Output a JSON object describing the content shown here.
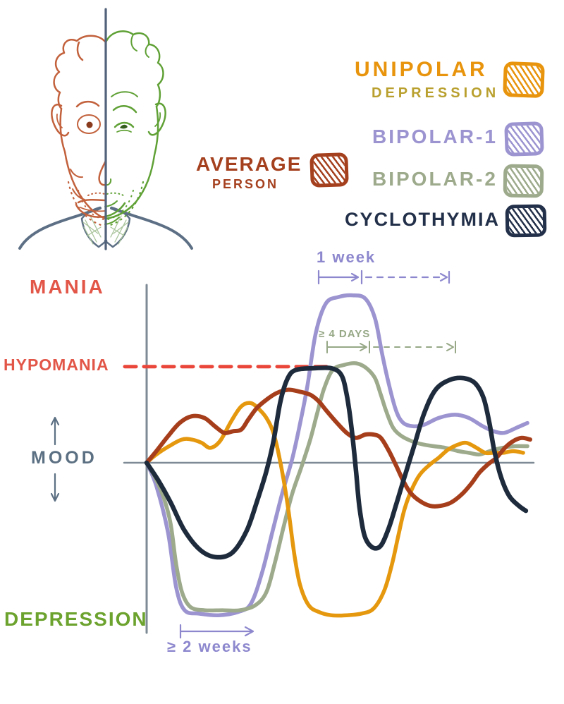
{
  "legend": {
    "average_person": {
      "line1": "AVERAGE",
      "line2": "PERSON",
      "color": "#a5401e"
    },
    "items": [
      {
        "id": "unipolar",
        "label": "UNIPOLAR",
        "sublabel": "DEPRESSION",
        "color": "#e8940c",
        "sublabel_color": "#b9a02e"
      },
      {
        "id": "bipolar-1",
        "label": "BIPOLAR-1",
        "color": "#9b94d1"
      },
      {
        "id": "bipolar-2",
        "label": "BIPOLAR-2",
        "color": "#9daa8b"
      },
      {
        "id": "cyclothymia",
        "label": "CYCLOTHYMIA",
        "color": "#233049"
      }
    ]
  },
  "palette": {
    "axis": "#7e8a95",
    "mania_hypomania_label": "#e25648",
    "hypomania_dash": "#ea463a",
    "mood_label": "#5c7083",
    "depression_label": "#6ca22e",
    "face_left_happy": "#c2613c",
    "face_right_sad": "#60a136",
    "sweater": "#5c6f84"
  },
  "chart_data": {
    "type": "line",
    "y_axis": {
      "label": "MOOD",
      "top_label": "MANIA",
      "threshold_label": "HYPOMANIA",
      "bottom_label": "DEPRESSION",
      "range": [
        -1,
        1.1
      ]
    },
    "x_axis": {
      "range": [
        0,
        10
      ],
      "visible_ticks": []
    },
    "grid": false,
    "legend_position": "top-right",
    "threshold_line": {
      "label": "HYPOMANIA",
      "mood": 0.58,
      "color": "#ea463a",
      "style": "dashed"
    },
    "annotations": [
      {
        "text": "1 week",
        "color": "#8d88ce",
        "series": "BIPOLAR-1",
        "solid_span_t": [
          4.4,
          5.5
        ],
        "dashed_span_t": [
          5.6,
          7.8
        ]
      },
      {
        "text": "≥ 4 DAYS",
        "color": "#96a886",
        "series": "BIPOLAR-2",
        "solid_span_t": [
          4.7,
          5.7
        ],
        "dashed_span_t": [
          5.9,
          8.0
        ]
      },
      {
        "text": "≥ 2 weeks",
        "color": "#8d88ce",
        "series": "BIPOLAR-1",
        "solid_span_t": [
          0.9,
          2.8
        ]
      }
    ],
    "units": {
      "t": "time (arbitrary, no ticks shown)",
      "mood": "-1 severe depression … +1 mania; hypomania threshold at 0.58"
    },
    "series": [
      {
        "name": "BIPOLAR-1",
        "color": "#9b94d1",
        "points": [
          [
            0,
            0
          ],
          [
            0.25,
            -0.14
          ],
          [
            0.55,
            -0.42
          ],
          [
            0.76,
            -0.75
          ],
          [
            0.98,
            -0.89
          ],
          [
            1.35,
            -0.91
          ],
          [
            1.85,
            -0.92
          ],
          [
            2.36,
            -0.9
          ],
          [
            2.69,
            -0.85
          ],
          [
            2.98,
            -0.66
          ],
          [
            3.24,
            -0.42
          ],
          [
            3.49,
            -0.19
          ],
          [
            3.75,
            0.02
          ],
          [
            3.96,
            0.24
          ],
          [
            4.15,
            0.47
          ],
          [
            4.36,
            0.78
          ],
          [
            4.62,
            0.96
          ],
          [
            4.95,
            1.0
          ],
          [
            5.31,
            1.01
          ],
          [
            5.64,
            0.99
          ],
          [
            5.89,
            0.87
          ],
          [
            6.07,
            0.66
          ],
          [
            6.25,
            0.47
          ],
          [
            6.44,
            0.31
          ],
          [
            6.62,
            0.24
          ],
          [
            6.87,
            0.22
          ],
          [
            7.16,
            0.23
          ],
          [
            7.53,
            0.27
          ],
          [
            7.95,
            0.29
          ],
          [
            8.31,
            0.27
          ],
          [
            8.67,
            0.22
          ],
          [
            8.95,
            0.19
          ],
          [
            9.22,
            0.18
          ],
          [
            9.53,
            0.21
          ],
          [
            9.82,
            0.24
          ]
        ]
      },
      {
        "name": "BIPOLAR-2",
        "color": "#9daa8b",
        "points": [
          [
            0,
            0
          ],
          [
            0.22,
            -0.09
          ],
          [
            0.44,
            -0.21
          ],
          [
            0.62,
            -0.37
          ],
          [
            0.76,
            -0.61
          ],
          [
            0.91,
            -0.78
          ],
          [
            1.13,
            -0.87
          ],
          [
            1.49,
            -0.89
          ],
          [
            1.95,
            -0.89
          ],
          [
            2.4,
            -0.89
          ],
          [
            2.8,
            -0.86
          ],
          [
            3.09,
            -0.78
          ],
          [
            3.31,
            -0.6
          ],
          [
            3.53,
            -0.39
          ],
          [
            3.75,
            -0.19
          ],
          [
            4.0,
            -0.02
          ],
          [
            4.22,
            0.14
          ],
          [
            4.4,
            0.3
          ],
          [
            4.58,
            0.45
          ],
          [
            4.8,
            0.56
          ],
          [
            5.09,
            0.59
          ],
          [
            5.4,
            0.6
          ],
          [
            5.67,
            0.57
          ],
          [
            5.89,
            0.51
          ],
          [
            6.04,
            0.41
          ],
          [
            6.18,
            0.31
          ],
          [
            6.36,
            0.21
          ],
          [
            6.58,
            0.16
          ],
          [
            6.84,
            0.13
          ],
          [
            7.13,
            0.11
          ],
          [
            7.4,
            0.1
          ],
          [
            7.71,
            0.09
          ],
          [
            8.04,
            0.07
          ],
          [
            8.31,
            0.06
          ],
          [
            8.58,
            0.05
          ],
          [
            8.85,
            0.07
          ],
          [
            9.16,
            0.09
          ],
          [
            9.49,
            0.1
          ],
          [
            9.82,
            0.1
          ]
        ]
      },
      {
        "name": "UNIPOLAR DEPRESSION",
        "color": "#e5980e",
        "points": [
          [
            0,
            0
          ],
          [
            0.25,
            0.05
          ],
          [
            0.58,
            0.1
          ],
          [
            0.91,
            0.14
          ],
          [
            1.16,
            0.14
          ],
          [
            1.42,
            0.12
          ],
          [
            1.64,
            0.09
          ],
          [
            1.89,
            0.13
          ],
          [
            2.18,
            0.25
          ],
          [
            2.44,
            0.34
          ],
          [
            2.69,
            0.36
          ],
          [
            2.91,
            0.32
          ],
          [
            3.09,
            0.27
          ],
          [
            3.24,
            0.2
          ],
          [
            3.35,
            0.11
          ],
          [
            3.45,
            0.0
          ],
          [
            3.56,
            -0.14
          ],
          [
            3.67,
            -0.31
          ],
          [
            3.82,
            -0.57
          ],
          [
            3.96,
            -0.74
          ],
          [
            4.18,
            -0.86
          ],
          [
            4.44,
            -0.9
          ],
          [
            4.76,
            -0.92
          ],
          [
            5.16,
            -0.92
          ],
          [
            5.53,
            -0.91
          ],
          [
            5.85,
            -0.88
          ],
          [
            6.13,
            -0.77
          ],
          [
            6.33,
            -0.61
          ],
          [
            6.49,
            -0.44
          ],
          [
            6.65,
            -0.28
          ],
          [
            6.84,
            -0.16
          ],
          [
            7.05,
            -0.07
          ],
          [
            7.31,
            -0.01
          ],
          [
            7.53,
            0.03
          ],
          [
            7.78,
            0.08
          ],
          [
            8.04,
            0.11
          ],
          [
            8.25,
            0.12
          ],
          [
            8.51,
            0.09
          ],
          [
            8.73,
            0.06
          ],
          [
            8.95,
            0.06
          ],
          [
            9.2,
            0.06
          ],
          [
            9.45,
            0.07
          ],
          [
            9.71,
            0.06
          ]
        ]
      },
      {
        "name": "AVERAGE PERSON",
        "color": "#a63e1b",
        "points": [
          [
            0,
            0
          ],
          [
            0.25,
            0.07
          ],
          [
            0.55,
            0.16
          ],
          [
            0.85,
            0.24
          ],
          [
            1.16,
            0.28
          ],
          [
            1.49,
            0.27
          ],
          [
            1.76,
            0.22
          ],
          [
            2.0,
            0.18
          ],
          [
            2.22,
            0.19
          ],
          [
            2.44,
            0.2
          ],
          [
            2.62,
            0.26
          ],
          [
            2.84,
            0.33
          ],
          [
            3.09,
            0.38
          ],
          [
            3.35,
            0.42
          ],
          [
            3.64,
            0.44
          ],
          [
            3.93,
            0.43
          ],
          [
            4.22,
            0.41
          ],
          [
            4.44,
            0.37
          ],
          [
            4.65,
            0.31
          ],
          [
            4.91,
            0.24
          ],
          [
            5.16,
            0.18
          ],
          [
            5.4,
            0.15
          ],
          [
            5.64,
            0.17
          ],
          [
            5.85,
            0.17
          ],
          [
            6.04,
            0.15
          ],
          [
            6.25,
            0.07
          ],
          [
            6.44,
            -0.02
          ],
          [
            6.62,
            -0.11
          ],
          [
            6.8,
            -0.18
          ],
          [
            7.04,
            -0.23
          ],
          [
            7.31,
            -0.26
          ],
          [
            7.58,
            -0.26
          ],
          [
            7.85,
            -0.24
          ],
          [
            8.13,
            -0.19
          ],
          [
            8.36,
            -0.13
          ],
          [
            8.58,
            -0.06
          ],
          [
            8.8,
            -0.01
          ],
          [
            9.02,
            0.03
          ],
          [
            9.24,
            0.09
          ],
          [
            9.45,
            0.13
          ],
          [
            9.67,
            0.15
          ],
          [
            9.89,
            0.14
          ]
        ]
      },
      {
        "name": "CYCLOTHYMIA",
        "color": "#1e2b3d",
        "points": [
          [
            0,
            0
          ],
          [
            0.31,
            -0.11
          ],
          [
            0.62,
            -0.24
          ],
          [
            0.98,
            -0.41
          ],
          [
            1.4,
            -0.53
          ],
          [
            1.82,
            -0.57
          ],
          [
            2.22,
            -0.54
          ],
          [
            2.58,
            -0.41
          ],
          [
            2.85,
            -0.23
          ],
          [
            3.09,
            -0.05
          ],
          [
            3.27,
            0.13
          ],
          [
            3.45,
            0.37
          ],
          [
            3.64,
            0.51
          ],
          [
            3.85,
            0.56
          ],
          [
            4.31,
            0.57
          ],
          [
            4.76,
            0.57
          ],
          [
            5.02,
            0.53
          ],
          [
            5.16,
            0.41
          ],
          [
            5.29,
            0.2
          ],
          [
            5.4,
            -0.05
          ],
          [
            5.49,
            -0.27
          ],
          [
            5.62,
            -0.44
          ],
          [
            5.82,
            -0.51
          ],
          [
            6.04,
            -0.5
          ],
          [
            6.25,
            -0.39
          ],
          [
            6.45,
            -0.24
          ],
          [
            6.67,
            -0.07
          ],
          [
            6.91,
            0.11
          ],
          [
            7.16,
            0.3
          ],
          [
            7.45,
            0.44
          ],
          [
            7.82,
            0.5
          ],
          [
            8.18,
            0.51
          ],
          [
            8.47,
            0.48
          ],
          [
            8.69,
            0.39
          ],
          [
            8.84,
            0.24
          ],
          [
            8.96,
            0.08
          ],
          [
            9.13,
            -0.08
          ],
          [
            9.35,
            -0.2
          ],
          [
            9.6,
            -0.26
          ],
          [
            9.78,
            -0.29
          ]
        ]
      }
    ]
  }
}
